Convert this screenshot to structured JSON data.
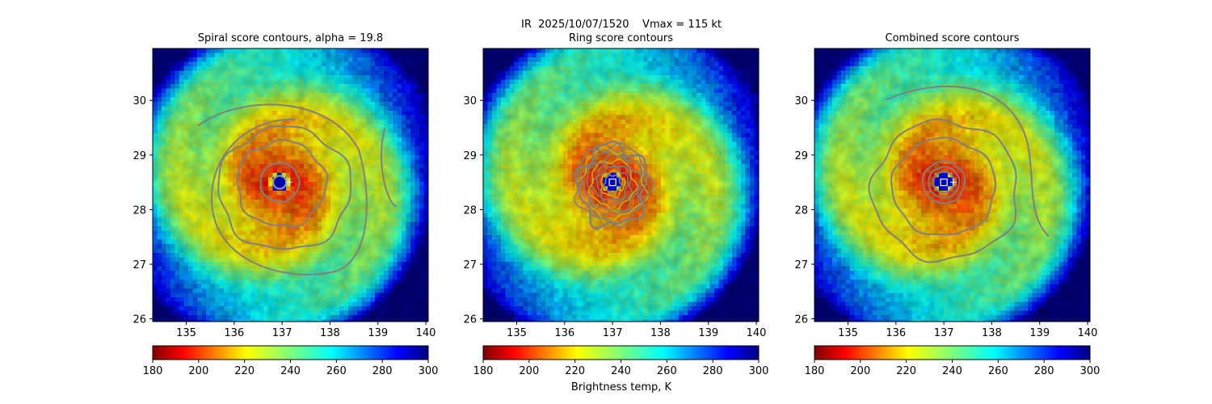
{
  "suptitle": "IR  2025/10/07/1520    Vmax = 115 kt",
  "colorbar_label": "Brightness temp, K",
  "chart_data": [
    {
      "type": "heatmap",
      "title": "Spiral score contours, alpha = 19.8",
      "xlim": [
        134.3,
        140.05
      ],
      "ylim": [
        25.95,
        30.95
      ],
      "xticks": [
        135,
        136,
        137,
        138,
        139,
        140
      ],
      "yticks": [
        26,
        27,
        28,
        29,
        30
      ],
      "colorbar": {
        "min": 180,
        "max": 300,
        "ticks": [
          180,
          200,
          220,
          240,
          260,
          280,
          300
        ]
      },
      "storm_center": [
        136.95,
        28.5
      ],
      "eye_marker": "circle",
      "contours": "spiral"
    },
    {
      "type": "heatmap",
      "title": "Ring score contours",
      "xlim": [
        134.3,
        140.05
      ],
      "ylim": [
        25.95,
        30.95
      ],
      "xticks": [
        135,
        136,
        137,
        138,
        139,
        140
      ],
      "yticks": [
        26,
        27,
        28,
        29,
        30
      ],
      "colorbar": {
        "min": 180,
        "max": 300,
        "ticks": [
          180,
          200,
          220,
          240,
          260,
          280,
          300
        ]
      },
      "storm_center": [
        137.0,
        28.5
      ],
      "eye_marker": "square",
      "contours": "ring"
    },
    {
      "type": "heatmap",
      "title": "Combined score contours",
      "xlim": [
        134.3,
        140.05
      ],
      "ylim": [
        25.95,
        30.95
      ],
      "xticks": [
        135,
        136,
        137,
        138,
        139,
        140
      ],
      "yticks": [
        26,
        27,
        28,
        29,
        30
      ],
      "colorbar": {
        "min": 180,
        "max": 300,
        "ticks": [
          180,
          200,
          220,
          240,
          260,
          280,
          300
        ]
      },
      "storm_center": [
        137.0,
        28.5
      ],
      "eye_marker": "square",
      "contours": "combined"
    }
  ]
}
